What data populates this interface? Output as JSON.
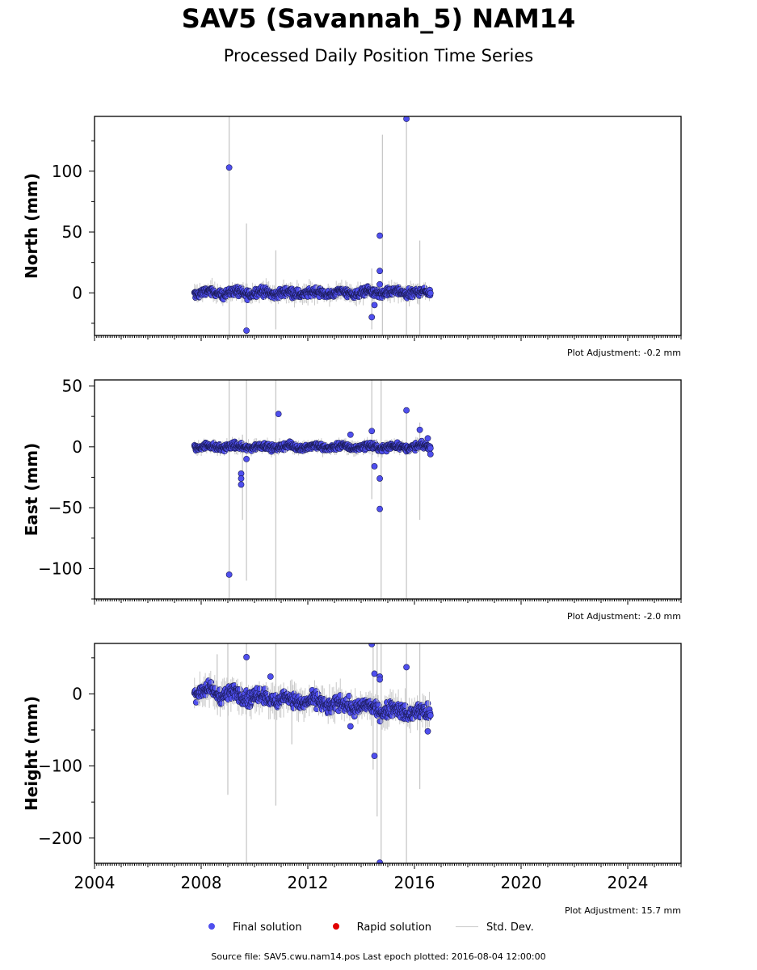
{
  "header": {
    "title": "SAV5 (Savannah_5) NAM14",
    "subtitle": "Processed Daily Position Time Series"
  },
  "legend": [
    {
      "label": "Final solution",
      "color": "#4f4fee",
      "kind": "dot"
    },
    {
      "label": "Rapid solution",
      "color": "#e10000",
      "kind": "dot"
    },
    {
      "label": "Std. Dev.",
      "color": "#c8c8c8",
      "kind": "line"
    }
  ],
  "footer": {
    "source": "Source file: SAV5.cwu.nam14.pos  Last epoch plotted: 2016-08-04 12:00:00"
  },
  "chart_data": [
    {
      "type": "scatter",
      "ylabel": "North (mm)",
      "adjustment": "Plot Adjustment: -0.2 mm",
      "xlim": [
        2004,
        2026
      ],
      "ylim": [
        -35,
        145
      ],
      "yticks": [
        0,
        50,
        100
      ],
      "xticks": [
        2004,
        2008,
        2012,
        2016,
        2020,
        2024
      ],
      "xticklabels_visible": false,
      "series_trend": {
        "x_start": 2007.75,
        "x_end": 2016.6,
        "y_start": 0,
        "y_end": 0,
        "noise": 2.5
      },
      "outliers": [
        {
          "x": 2009.05,
          "y": 103
        },
        {
          "x": 2009.7,
          "y": -31
        },
        {
          "x": 2014.4,
          "y": -20
        },
        {
          "x": 2014.5,
          "y": -10
        },
        {
          "x": 2014.7,
          "y": 47
        },
        {
          "x": 2014.7,
          "y": 18
        },
        {
          "x": 2014.7,
          "y": 7
        },
        {
          "x": 2015.7,
          "y": 143
        }
      ],
      "errorbars": [
        {
          "x": 2009.05,
          "low": -35,
          "high": 145
        },
        {
          "x": 2009.7,
          "low": -35,
          "high": 57
        },
        {
          "x": 2010.8,
          "low": -30,
          "high": 35
        },
        {
          "x": 2014.8,
          "low": -35,
          "high": 130
        },
        {
          "x": 2015.7,
          "low": -35,
          "high": 145
        },
        {
          "x": 2016.2,
          "low": -35,
          "high": 43
        },
        {
          "x": 2014.4,
          "low": -30,
          "high": 20
        }
      ]
    },
    {
      "type": "scatter",
      "ylabel": "East (mm)",
      "adjustment": "Plot Adjustment: -2.0 mm",
      "xlim": [
        2004,
        2026
      ],
      "ylim": [
        -125,
        55
      ],
      "yticks": [
        -100,
        -50,
        0,
        50
      ],
      "xticks": [
        2004,
        2008,
        2012,
        2016,
        2020,
        2024
      ],
      "xticklabels_visible": false,
      "series_trend": {
        "x_start": 2007.75,
        "x_end": 2016.6,
        "y_start": 0,
        "y_end": 0,
        "noise": 1.8
      },
      "outliers": [
        {
          "x": 2009.05,
          "y": -105
        },
        {
          "x": 2009.5,
          "y": -22
        },
        {
          "x": 2009.5,
          "y": -26
        },
        {
          "x": 2009.5,
          "y": -31
        },
        {
          "x": 2009.7,
          "y": -10
        },
        {
          "x": 2010.9,
          "y": 27
        },
        {
          "x": 2013.6,
          "y": 10
        },
        {
          "x": 2014.4,
          "y": 13
        },
        {
          "x": 2014.5,
          "y": -16
        },
        {
          "x": 2014.7,
          "y": -26
        },
        {
          "x": 2014.7,
          "y": -51
        },
        {
          "x": 2015.7,
          "y": 30
        },
        {
          "x": 2016.2,
          "y": 14
        },
        {
          "x": 2016.5,
          "y": 7
        },
        {
          "x": 2016.6,
          "y": -6
        }
      ],
      "errorbars": [
        {
          "x": 2009.05,
          "low": -125,
          "high": 55
        },
        {
          "x": 2009.7,
          "low": -110,
          "high": 55
        },
        {
          "x": 2009.55,
          "low": -60,
          "high": 10
        },
        {
          "x": 2010.8,
          "low": -125,
          "high": 55
        },
        {
          "x": 2014.4,
          "low": -43,
          "high": 55
        },
        {
          "x": 2014.75,
          "low": -125,
          "high": 55
        },
        {
          "x": 2015.7,
          "low": -125,
          "high": 30
        },
        {
          "x": 2016.2,
          "low": -60,
          "high": 20
        }
      ]
    },
    {
      "type": "scatter",
      "ylabel": "Height (mm)",
      "adjustment": "Plot Adjustment: 15.7 mm",
      "xlim": [
        2004,
        2026
      ],
      "ylim": [
        -235,
        70
      ],
      "yticks": [
        -200,
        -100,
        0
      ],
      "xticks": [
        2004,
        2008,
        2012,
        2016,
        2020,
        2024
      ],
      "xticklabels": [
        "2004",
        "2008",
        "2012",
        "2016",
        "2020",
        "2024"
      ],
      "xticklabels_visible": true,
      "series_trend": {
        "x_start": 2007.75,
        "x_end": 2016.6,
        "y_start": 5,
        "y_end": -28,
        "noise": 7
      },
      "outliers": [
        {
          "x": 2009.7,
          "y": 51
        },
        {
          "x": 2010.6,
          "y": 24
        },
        {
          "x": 2014.4,
          "y": 69
        },
        {
          "x": 2014.5,
          "y": 28
        },
        {
          "x": 2014.7,
          "y": 24
        },
        {
          "x": 2014.7,
          "y": 20
        },
        {
          "x": 2014.5,
          "y": -86
        },
        {
          "x": 2014.7,
          "y": -234
        },
        {
          "x": 2015.7,
          "y": 37
        },
        {
          "x": 2016.5,
          "y": -52
        },
        {
          "x": 2013.6,
          "y": -45
        }
      ],
      "errorbars": [
        {
          "x": 2008.6,
          "low": -20,
          "high": 55
        },
        {
          "x": 2009.0,
          "low": -140,
          "high": 70
        },
        {
          "x": 2009.7,
          "low": -235,
          "high": 70
        },
        {
          "x": 2010.8,
          "low": -155,
          "high": 70
        },
        {
          "x": 2014.45,
          "low": -105,
          "high": 70
        },
        {
          "x": 2014.6,
          "low": -170,
          "high": 70
        },
        {
          "x": 2014.75,
          "low": -235,
          "high": 70
        },
        {
          "x": 2015.7,
          "low": -235,
          "high": 70
        },
        {
          "x": 2016.2,
          "low": -132,
          "high": 70
        },
        {
          "x": 2011.4,
          "low": -70,
          "high": 20
        }
      ]
    }
  ]
}
